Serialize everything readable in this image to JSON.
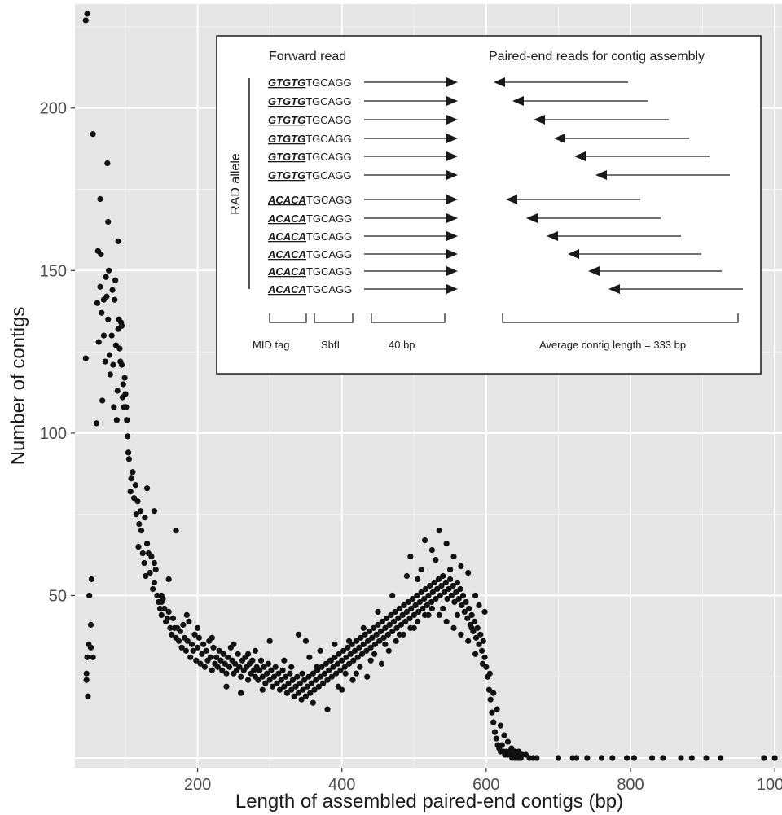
{
  "chart_data": {
    "type": "scatter",
    "xlabel": "Length of assembled paired-end contigs  (bp)",
    "ylabel": "Number of contigs",
    "xlim": [
      30,
      1010
    ],
    "ylim": [
      -3,
      232
    ],
    "x_ticks": [
      {
        "value": 200,
        "label": "200"
      },
      {
        "value": 400,
        "label": "400"
      },
      {
        "value": 600,
        "label": "600"
      },
      {
        "value": 800,
        "label": "800"
      },
      {
        "value": 1000,
        "label": "1000"
      }
    ],
    "y_ticks": [
      {
        "value": 50,
        "label": "50"
      },
      {
        "value": 100,
        "label": "100"
      },
      {
        "value": 150,
        "label": "150"
      },
      {
        "value": 200,
        "label": "200"
      }
    ],
    "y_minor_ticks": [
      0,
      25,
      75,
      125,
      175,
      225
    ],
    "x_minor_ticks": [
      100,
      300,
      500,
      700,
      900
    ],
    "background": "#e5e5e5",
    "point_color": "#111111",
    "points": [
      [
        45,
        227
      ],
      [
        47,
        229
      ],
      [
        55,
        192
      ],
      [
        65,
        172
      ],
      [
        75,
        183
      ],
      [
        76,
        165
      ],
      [
        90,
        159
      ],
      [
        62,
        156
      ],
      [
        66,
        155
      ],
      [
        45,
        123
      ],
      [
        50,
        50
      ],
      [
        52,
        41
      ],
      [
        53,
        55
      ],
      [
        49,
        35
      ],
      [
        47,
        31
      ],
      [
        46,
        26
      ],
      [
        48,
        19
      ],
      [
        55,
        31
      ],
      [
        52,
        34
      ],
      [
        46,
        24
      ],
      [
        60,
        103
      ],
      [
        61,
        140
      ],
      [
        63,
        128
      ],
      [
        65,
        145
      ],
      [
        67,
        137
      ],
      [
        68,
        110
      ],
      [
        70,
        141
      ],
      [
        72,
        122
      ],
      [
        73,
        148
      ],
      [
        74,
        142
      ],
      [
        76,
        135
      ],
      [
        77,
        150
      ],
      [
        78,
        124
      ],
      [
        79,
        118
      ],
      [
        81,
        130
      ],
      [
        82,
        144
      ],
      [
        83,
        121
      ],
      [
        84,
        108
      ],
      [
        85,
        141
      ],
      [
        86,
        147
      ],
      [
        87,
        127
      ],
      [
        88,
        104
      ],
      [
        89,
        113
      ],
      [
        90,
        132
      ],
      [
        91,
        135
      ],
      [
        92,
        126
      ],
      [
        93,
        122
      ],
      [
        94,
        134
      ],
      [
        95,
        121
      ],
      [
        96,
        111
      ],
      [
        97,
        115
      ],
      [
        98,
        108
      ],
      [
        99,
        117
      ],
      [
        100,
        112
      ],
      [
        101,
        108
      ],
      [
        102,
        104
      ],
      [
        103,
        99
      ],
      [
        104,
        94
      ],
      [
        105,
        92
      ],
      [
        107,
        82
      ],
      [
        108,
        86
      ],
      [
        110,
        88
      ],
      [
        112,
        80
      ],
      [
        114,
        84
      ],
      [
        115,
        75
      ],
      [
        117,
        79
      ],
      [
        118,
        65
      ],
      [
        119,
        72
      ],
      [
        121,
        76
      ],
      [
        122,
        70
      ],
      [
        124,
        63
      ],
      [
        126,
        60
      ],
      [
        127,
        74
      ],
      [
        128,
        56
      ],
      [
        130,
        66
      ],
      [
        132,
        63
      ],
      [
        134,
        57
      ],
      [
        136,
        62
      ],
      [
        138,
        52
      ],
      [
        140,
        54
      ],
      [
        142,
        58
      ],
      [
        144,
        50
      ],
      [
        146,
        48
      ],
      [
        148,
        46
      ],
      [
        150,
        44
      ],
      [
        152,
        49
      ],
      [
        154,
        46
      ],
      [
        156,
        42
      ],
      [
        158,
        43
      ],
      [
        160,
        45
      ],
      [
        162,
        40
      ],
      [
        164,
        38
      ],
      [
        166,
        43
      ],
      [
        168,
        40
      ],
      [
        170,
        37
      ],
      [
        172,
        40
      ],
      [
        174,
        36
      ],
      [
        176,
        39
      ],
      [
        178,
        34
      ],
      [
        180,
        41
      ],
      [
        182,
        37
      ],
      [
        184,
        33
      ],
      [
        186,
        36
      ],
      [
        188,
        42
      ],
      [
        190,
        31
      ],
      [
        192,
        35
      ],
      [
        194,
        33
      ],
      [
        196,
        38
      ],
      [
        198,
        30
      ],
      [
        200,
        34
      ],
      [
        202,
        37
      ],
      [
        204,
        29
      ],
      [
        206,
        32
      ],
      [
        208,
        35
      ],
      [
        210,
        28
      ],
      [
        212,
        33
      ],
      [
        214,
        30
      ],
      [
        216,
        36
      ],
      [
        218,
        31
      ],
      [
        220,
        27
      ],
      [
        222,
        34
      ],
      [
        224,
        29
      ],
      [
        226,
        31
      ],
      [
        228,
        28
      ],
      [
        230,
        33
      ],
      [
        232,
        30
      ],
      [
        234,
        27
      ],
      [
        236,
        32
      ],
      [
        238,
        29
      ],
      [
        240,
        26
      ],
      [
        242,
        31
      ],
      [
        244,
        28
      ],
      [
        246,
        34
      ],
      [
        248,
        30
      ],
      [
        250,
        26
      ],
      [
        252,
        29
      ],
      [
        254,
        27
      ],
      [
        256,
        32
      ],
      [
        258,
        28
      ],
      [
        260,
        25
      ],
      [
        262,
        30
      ],
      [
        264,
        27
      ],
      [
        266,
        31
      ],
      [
        268,
        28
      ],
      [
        270,
        24
      ],
      [
        272,
        29
      ],
      [
        274,
        26
      ],
      [
        276,
        30
      ],
      [
        278,
        27
      ],
      [
        280,
        25
      ],
      [
        282,
        28
      ],
      [
        284,
        24
      ],
      [
        286,
        27
      ],
      [
        288,
        30
      ],
      [
        290,
        25
      ],
      [
        292,
        28
      ],
      [
        294,
        23
      ],
      [
        296,
        26
      ],
      [
        298,
        29
      ],
      [
        300,
        24
      ],
      [
        302,
        27
      ],
      [
        304,
        22
      ],
      [
        306,
        25
      ],
      [
        308,
        28
      ],
      [
        310,
        23
      ],
      [
        312,
        26
      ],
      [
        314,
        21
      ],
      [
        316,
        24
      ],
      [
        318,
        27
      ],
      [
        320,
        22
      ],
      [
        322,
        25
      ],
      [
        324,
        20
      ],
      [
        326,
        23
      ],
      [
        328,
        26
      ],
      [
        330,
        21
      ],
      [
        332,
        24
      ],
      [
        334,
        19
      ],
      [
        336,
        22
      ],
      [
        338,
        25
      ],
      [
        340,
        20
      ],
      [
        342,
        23
      ],
      [
        344,
        18
      ],
      [
        346,
        21
      ],
      [
        348,
        24
      ],
      [
        350,
        19
      ],
      [
        352,
        22
      ],
      [
        354,
        25
      ],
      [
        356,
        20
      ],
      [
        358,
        23
      ],
      [
        360,
        26
      ],
      [
        362,
        21
      ],
      [
        364,
        24
      ],
      [
        366,
        27
      ],
      [
        368,
        22
      ],
      [
        370,
        25
      ],
      [
        372,
        28
      ],
      [
        374,
        23
      ],
      [
        376,
        26
      ],
      [
        378,
        29
      ],
      [
        380,
        24
      ],
      [
        382,
        27
      ],
      [
        384,
        30
      ],
      [
        386,
        25
      ],
      [
        388,
        28
      ],
      [
        390,
        31
      ],
      [
        392,
        26
      ],
      [
        394,
        29
      ],
      [
        396,
        32
      ],
      [
        398,
        27
      ],
      [
        400,
        30
      ],
      [
        402,
        33
      ],
      [
        404,
        28
      ],
      [
        406,
        31
      ],
      [
        408,
        34
      ],
      [
        410,
        29
      ],
      [
        412,
        32
      ],
      [
        414,
        35
      ],
      [
        416,
        30
      ],
      [
        418,
        33
      ],
      [
        420,
        36
      ],
      [
        422,
        31
      ],
      [
        424,
        34
      ],
      [
        426,
        37
      ],
      [
        428,
        32
      ],
      [
        430,
        35
      ],
      [
        432,
        38
      ],
      [
        434,
        33
      ],
      [
        436,
        36
      ],
      [
        438,
        39
      ],
      [
        440,
        34
      ],
      [
        442,
        37
      ],
      [
        444,
        40
      ],
      [
        446,
        35
      ],
      [
        448,
        38
      ],
      [
        450,
        41
      ],
      [
        452,
        36
      ],
      [
        454,
        39
      ],
      [
        456,
        42
      ],
      [
        458,
        37
      ],
      [
        460,
        40
      ],
      [
        462,
        43
      ],
      [
        464,
        38
      ],
      [
        466,
        41
      ],
      [
        468,
        44
      ],
      [
        470,
        39
      ],
      [
        472,
        42
      ],
      [
        474,
        45
      ],
      [
        476,
        40
      ],
      [
        478,
        43
      ],
      [
        480,
        46
      ],
      [
        482,
        41
      ],
      [
        484,
        44
      ],
      [
        486,
        47
      ],
      [
        488,
        42
      ],
      [
        490,
        45
      ],
      [
        492,
        48
      ],
      [
        494,
        43
      ],
      [
        496,
        46
      ],
      [
        498,
        49
      ],
      [
        500,
        44
      ],
      [
        502,
        47
      ],
      [
        504,
        50
      ],
      [
        506,
        45
      ],
      [
        508,
        48
      ],
      [
        510,
        51
      ],
      [
        512,
        46
      ],
      [
        514,
        49
      ],
      [
        516,
        52
      ],
      [
        518,
        47
      ],
      [
        520,
        50
      ],
      [
        522,
        53
      ],
      [
        524,
        48
      ],
      [
        526,
        51
      ],
      [
        528,
        54
      ],
      [
        530,
        49
      ],
      [
        532,
        52
      ],
      [
        534,
        55
      ],
      [
        536,
        50
      ],
      [
        538,
        53
      ],
      [
        540,
        56
      ],
      [
        542,
        51
      ],
      [
        544,
        54
      ],
      [
        546,
        49
      ],
      [
        548,
        52
      ],
      [
        550,
        55
      ],
      [
        552,
        50
      ],
      [
        554,
        53
      ],
      [
        556,
        48
      ],
      [
        558,
        51
      ],
      [
        560,
        54
      ],
      [
        562,
        49
      ],
      [
        564,
        52
      ],
      [
        566,
        47
      ],
      [
        568,
        50
      ],
      [
        570,
        45
      ],
      [
        572,
        48
      ],
      [
        574,
        43
      ],
      [
        576,
        46
      ],
      [
        578,
        41
      ],
      [
        580,
        44
      ],
      [
        582,
        39
      ],
      [
        584,
        42
      ],
      [
        586,
        37
      ],
      [
        588,
        40
      ],
      [
        590,
        35
      ],
      [
        592,
        38
      ],
      [
        594,
        33
      ],
      [
        596,
        36
      ],
      [
        598,
        31
      ],
      [
        600,
        28
      ],
      [
        602,
        25
      ],
      [
        604,
        21
      ],
      [
        606,
        18
      ],
      [
        608,
        14
      ],
      [
        610,
        11
      ],
      [
        612,
        8
      ],
      [
        614,
        6
      ],
      [
        616,
        4
      ],
      [
        618,
        3
      ],
      [
        620,
        2
      ],
      [
        622,
        4
      ],
      [
        624,
        2
      ],
      [
        626,
        1
      ],
      [
        628,
        2
      ],
      [
        630,
        1
      ],
      [
        632,
        2
      ],
      [
        634,
        1
      ],
      [
        636,
        0
      ],
      [
        638,
        1
      ],
      [
        640,
        0
      ],
      [
        642,
        1
      ],
      [
        644,
        0
      ],
      [
        646,
        0
      ],
      [
        648,
        0
      ],
      [
        70,
        130
      ],
      [
        95,
        133
      ],
      [
        280,
        33
      ],
      [
        300,
        36
      ],
      [
        240,
        22
      ],
      [
        260,
        20
      ],
      [
        290,
        21
      ],
      [
        320,
        30
      ],
      [
        340,
        38
      ],
      [
        360,
        17
      ],
      [
        380,
        15
      ],
      [
        400,
        21
      ],
      [
        420,
        26
      ],
      [
        440,
        30
      ],
      [
        460,
        35
      ],
      [
        480,
        38
      ],
      [
        500,
        40
      ],
      [
        520,
        44
      ],
      [
        540,
        46
      ],
      [
        560,
        44
      ],
      [
        580,
        40
      ],
      [
        350,
        36
      ],
      [
        370,
        33
      ],
      [
        390,
        35
      ],
      [
        410,
        36
      ],
      [
        430,
        40
      ],
      [
        450,
        45
      ],
      [
        470,
        50
      ],
      [
        490,
        56
      ],
      [
        510,
        58
      ],
      [
        530,
        61
      ],
      [
        550,
        58
      ],
      [
        495,
        62
      ],
      [
        515,
        67
      ],
      [
        535,
        70
      ],
      [
        555,
        62
      ],
      [
        575,
        57
      ],
      [
        525,
        64
      ],
      [
        505,
        55
      ],
      [
        545,
        66
      ],
      [
        565,
        59
      ],
      [
        585,
        50
      ],
      [
        590,
        47
      ],
      [
        598,
        45
      ],
      [
        170,
        70
      ],
      [
        160,
        55
      ],
      [
        150,
        48
      ],
      [
        140,
        60
      ],
      [
        130,
        83
      ],
      [
        140,
        76
      ],
      [
        150,
        50
      ],
      [
        185,
        44
      ],
      [
        200,
        40
      ],
      [
        220,
        37
      ],
      [
        250,
        35
      ],
      [
        270,
        32
      ],
      [
        330,
        28
      ],
      [
        345,
        26
      ],
      [
        355,
        31
      ],
      [
        365,
        28
      ],
      [
        385,
        30
      ],
      [
        395,
        22
      ],
      [
        405,
        26
      ],
      [
        415,
        24
      ],
      [
        425,
        28
      ],
      [
        435,
        25
      ],
      [
        445,
        32
      ],
      [
        455,
        29
      ],
      [
        465,
        33
      ],
      [
        475,
        36
      ],
      [
        485,
        38
      ],
      [
        495,
        40
      ],
      [
        505,
        42
      ],
      [
        515,
        44
      ],
      [
        525,
        46
      ],
      [
        535,
        44
      ],
      [
        545,
        42
      ],
      [
        555,
        40
      ],
      [
        565,
        38
      ],
      [
        575,
        36
      ],
      [
        585,
        32
      ],
      [
        595,
        29
      ],
      [
        605,
        26
      ],
      [
        610,
        20
      ],
      [
        615,
        15
      ],
      [
        620,
        10
      ],
      [
        625,
        7
      ],
      [
        630,
        5
      ],
      [
        635,
        3
      ],
      [
        640,
        2
      ],
      [
        645,
        2
      ],
      [
        650,
        1
      ],
      [
        655,
        1
      ],
      [
        660,
        0
      ],
      [
        665,
        0
      ],
      [
        670,
        0
      ],
      [
        700,
        0
      ],
      [
        720,
        0
      ],
      [
        725,
        0
      ],
      [
        740,
        0
      ],
      [
        760,
        0
      ],
      [
        775,
        0
      ],
      [
        795,
        0
      ],
      [
        805,
        0
      ],
      [
        830,
        0
      ],
      [
        845,
        0
      ],
      [
        870,
        0
      ],
      [
        885,
        0
      ],
      [
        905,
        0
      ],
      [
        925,
        0
      ],
      [
        985,
        0
      ],
      [
        1000,
        0
      ]
    ]
  },
  "inset": {
    "forward_label": "Forward read",
    "paired_label": "Paired-end reads for contig assembly",
    "allele_label": "RAD allele",
    "tag_a": "GTGTG",
    "tag_b": "ACACA",
    "site_suffix": "TGCAGG",
    "mid_label": "MID tag",
    "sbf_label": "SbfI",
    "bp_label": "40 bp",
    "avg_label": "Average contig length = 333 bp"
  }
}
